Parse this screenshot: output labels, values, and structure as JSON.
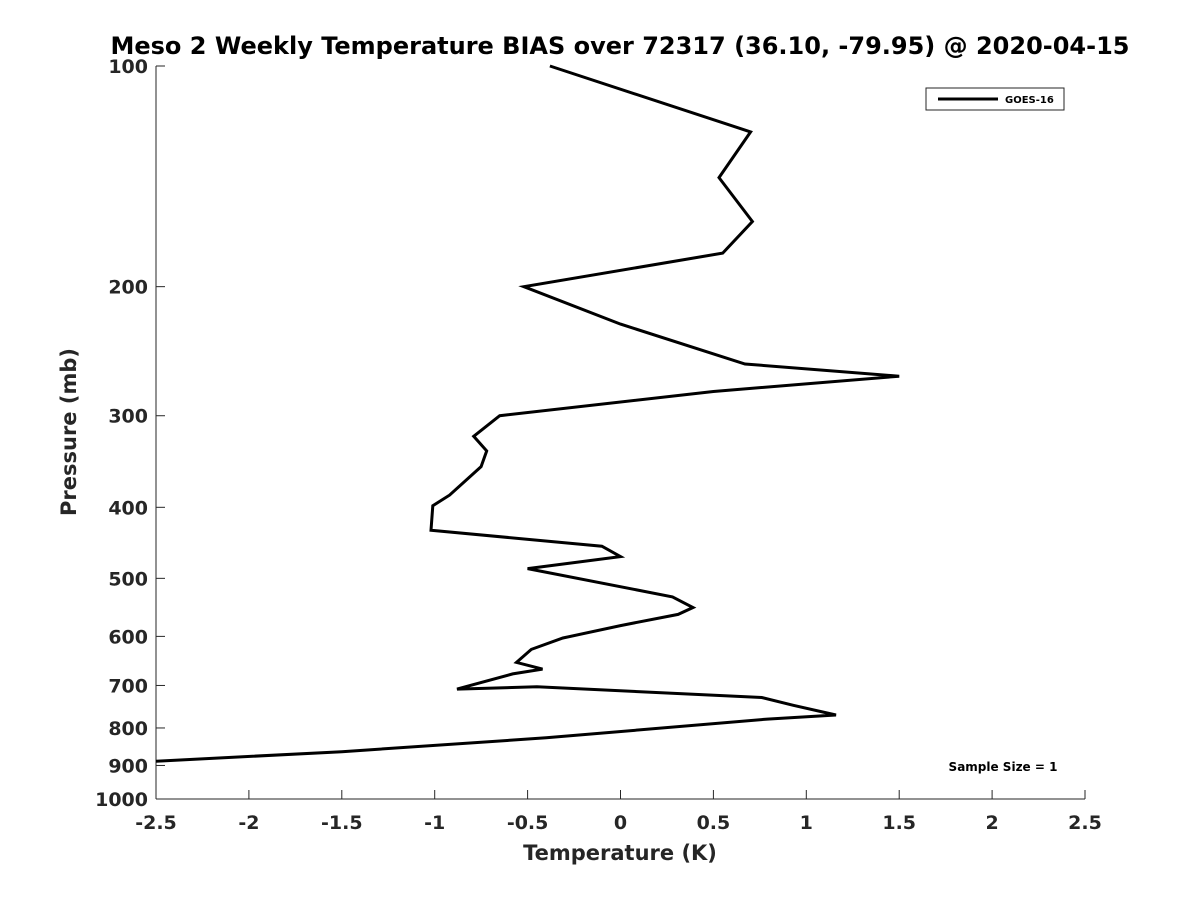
{
  "chart_data": {
    "type": "line",
    "title": "Meso 2 Weekly Temperature BIAS over 72317 (36.10, -79.95) @ 2020-04-15",
    "xlabel": "Temperature (K)",
    "ylabel": "Pressure (mb)",
    "xlim": [
      -2.5,
      2.5
    ],
    "ylim": [
      100,
      1000
    ],
    "y_scale": "log",
    "y_reversed": true,
    "x_ticks": [
      "-2.5",
      "-2",
      "-1.5",
      "-1",
      "-0.5",
      "0",
      "0.5",
      "1",
      "1.5",
      "2",
      "2.5"
    ],
    "y_ticks": [
      "100",
      "200",
      "300",
      "400",
      "500",
      "600",
      "700",
      "800",
      "900",
      "1000"
    ],
    "grid": false,
    "legend_position": "top-right",
    "annotation": "Sample Size = 1",
    "line_color": "#000000",
    "series": [
      {
        "name": "GOES-16",
        "x": [
          -0.38,
          0.7,
          0.53,
          0.71,
          0.55,
          -0.52,
          0.0,
          0.67,
          1.5,
          0.5,
          -0.65,
          -0.79,
          -0.72,
          -0.75,
          -0.92,
          -1.01,
          -1.02,
          -0.1,
          0.0,
          -0.5,
          0.28,
          0.39,
          0.31,
          0.0,
          -0.31,
          -0.48,
          -0.56,
          -0.42,
          -0.58,
          -0.88,
          -0.45,
          0.76,
          0.93,
          1.16,
          0.79,
          -0.4,
          -1.5,
          -2.5
        ],
        "y": [
          100,
          123,
          142,
          163,
          180,
          200,
          225,
          255,
          265,
          278,
          300,
          320,
          335,
          352,
          385,
          398,
          430,
          452,
          467,
          485,
          530,
          548,
          560,
          580,
          603,
          625,
          651,
          665,
          675,
          708,
          703,
          727,
          745,
          768,
          778,
          825,
          862,
          888
        ]
      }
    ]
  }
}
